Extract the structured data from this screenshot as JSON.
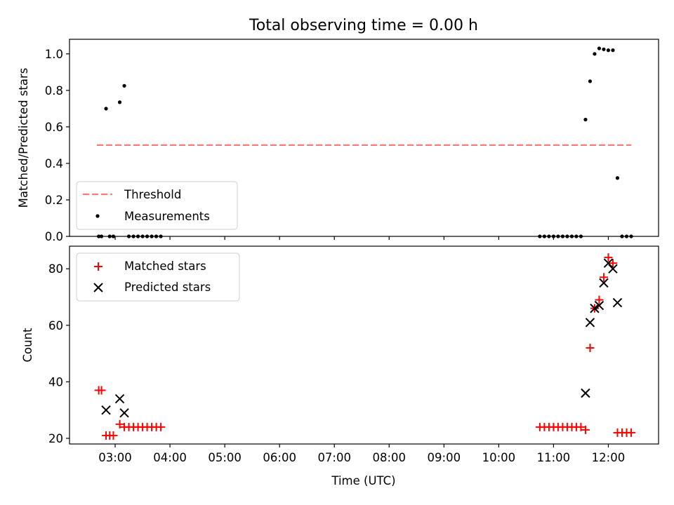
{
  "figure": {
    "title": "Total observing time = 0.00 h"
  },
  "chart_data": [
    {
      "type": "scatter",
      "panel": "top",
      "ylabel": "Matched/Predicted stars",
      "xlabel": "",
      "ylim": [
        0,
        1.08
      ],
      "yticks": [
        0,
        0.2,
        0.4,
        0.6,
        0.8,
        1.0
      ],
      "ytick_labels": [
        "0.0",
        "0.2",
        "0.4",
        "0.6",
        "0.8",
        "1.0"
      ],
      "grid": false,
      "legend_position": "lower-left",
      "series": [
        {
          "name": "Threshold",
          "style": "dashed-line",
          "color": "#f47c7c",
          "x": [
            "02:40",
            "12:25"
          ],
          "y": [
            0.5,
            0.5
          ]
        },
        {
          "name": "Measurements",
          "style": "dot",
          "color": "#000000",
          "x": [
            "02:42",
            "02:45",
            "02:50",
            "02:54",
            "02:58",
            "03:05",
            "03:10",
            "03:15",
            "03:20",
            "03:25",
            "03:30",
            "03:35",
            "03:40",
            "03:45",
            "03:50",
            "10:45",
            "10:50",
            "10:55",
            "11:00",
            "11:05",
            "11:10",
            "11:15",
            "11:20",
            "11:25",
            "11:30",
            "11:35",
            "11:40",
            "11:45",
            "11:50",
            "11:55",
            "12:00",
            "12:05",
            "12:10",
            "12:15",
            "12:20",
            "12:25"
          ],
          "y": [
            0,
            0,
            0.7,
            0,
            0,
            0.735,
            0.825,
            0,
            0,
            0,
            0,
            0,
            0,
            0,
            0,
            0,
            0,
            0,
            0,
            0,
            0,
            0,
            0,
            0,
            0,
            0.64,
            0.85,
            1.0,
            1.03,
            1.025,
            1.02,
            1.02,
            0.32,
            0,
            0,
            0
          ]
        }
      ]
    },
    {
      "type": "scatter",
      "panel": "bottom",
      "ylabel": "Count",
      "xlabel": "Time (UTC)",
      "ylim": [
        18,
        88
      ],
      "yticks": [
        20,
        40,
        60,
        80
      ],
      "ytick_labels": [
        "20",
        "40",
        "60",
        "80"
      ],
      "xlim": [
        "02:10",
        "12:55"
      ],
      "xticks": [
        "03:00",
        "04:00",
        "05:00",
        "06:00",
        "07:00",
        "08:00",
        "09:00",
        "10:00",
        "11:00",
        "12:00"
      ],
      "grid": false,
      "legend_position": "upper-left",
      "series": [
        {
          "name": "Matched stars",
          "marker": "plus",
          "color": "#ff0000",
          "x": [
            "02:42",
            "02:45",
            "02:50",
            "02:54",
            "02:58",
            "03:05",
            "03:10",
            "03:15",
            "03:20",
            "03:25",
            "03:30",
            "03:35",
            "03:40",
            "03:45",
            "03:50",
            "10:45",
            "10:50",
            "10:55",
            "11:00",
            "11:05",
            "11:10",
            "11:15",
            "11:20",
            "11:25",
            "11:30",
            "11:35",
            "11:40",
            "11:45",
            "11:50",
            "11:55",
            "12:00",
            "12:05",
            "12:10",
            "12:15",
            "12:20",
            "12:25"
          ],
          "y": [
            37,
            37,
            21,
            21,
            21,
            25,
            24,
            24,
            24,
            24,
            24,
            24,
            24,
            24,
            24,
            24,
            24,
            24,
            24,
            24,
            24,
            24,
            24,
            24,
            24,
            23,
            52,
            66,
            69,
            77,
            84,
            82,
            22,
            22,
            22,
            22
          ]
        },
        {
          "name": "Predicted stars",
          "marker": "x",
          "color": "#000000",
          "x": [
            "02:50",
            "03:05",
            "03:10",
            "11:35",
            "11:40",
            "11:45",
            "11:50",
            "11:55",
            "12:00",
            "12:05",
            "12:10"
          ],
          "y": [
            30,
            34,
            29,
            36,
            61,
            66,
            67,
            75,
            82,
            80,
            68
          ]
        }
      ]
    }
  ]
}
